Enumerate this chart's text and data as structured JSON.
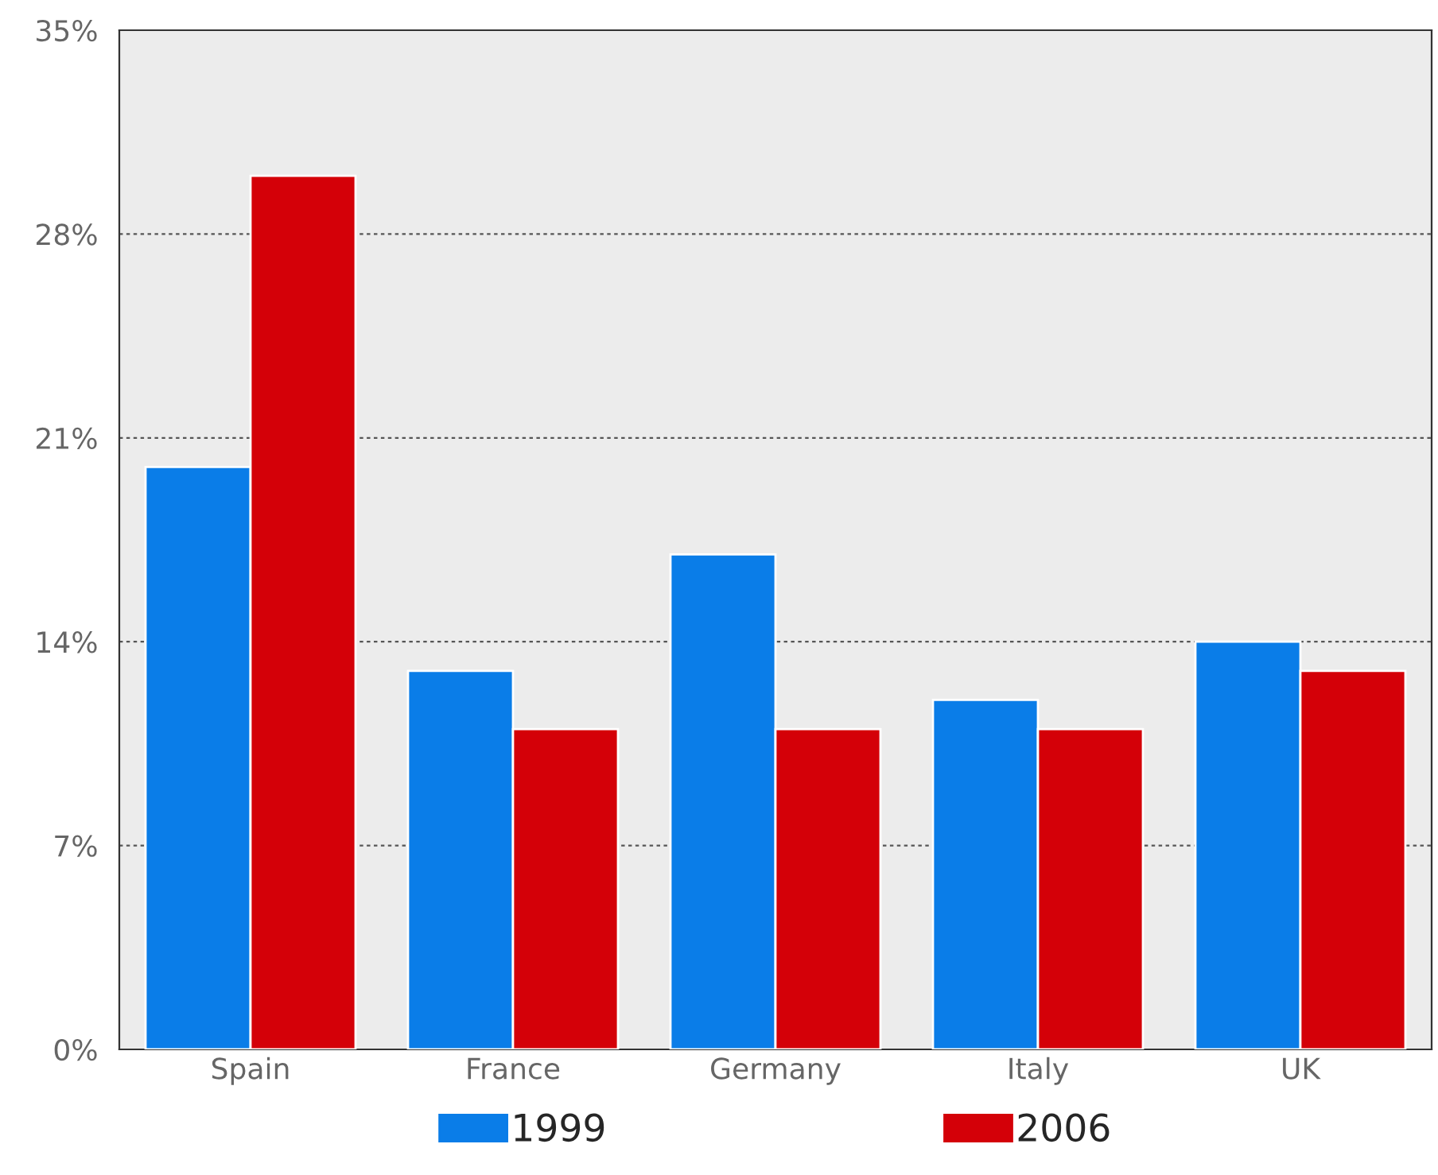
{
  "chart_data": {
    "type": "bar",
    "categories": [
      "Spain",
      "France",
      "Germany",
      "Italy",
      "UK"
    ],
    "series": [
      {
        "name": "1999",
        "color": "#0a7de8",
        "values": [
          20,
          13,
          17,
          12,
          14
        ]
      },
      {
        "name": "2006",
        "color": "#d40008",
        "values": [
          30,
          11,
          11,
          11,
          13
        ]
      }
    ],
    "ylim": [
      0,
      35
    ],
    "yticks": [
      {
        "value": 0,
        "label": "0%"
      },
      {
        "value": 7,
        "label": "7%"
      },
      {
        "value": 14,
        "label": "14%"
      },
      {
        "value": 21,
        "label": "21%"
      },
      {
        "value": 28,
        "label": "28%"
      },
      {
        "value": 35,
        "label": "35%"
      }
    ],
    "grid": "y",
    "legend": "bottom"
  }
}
